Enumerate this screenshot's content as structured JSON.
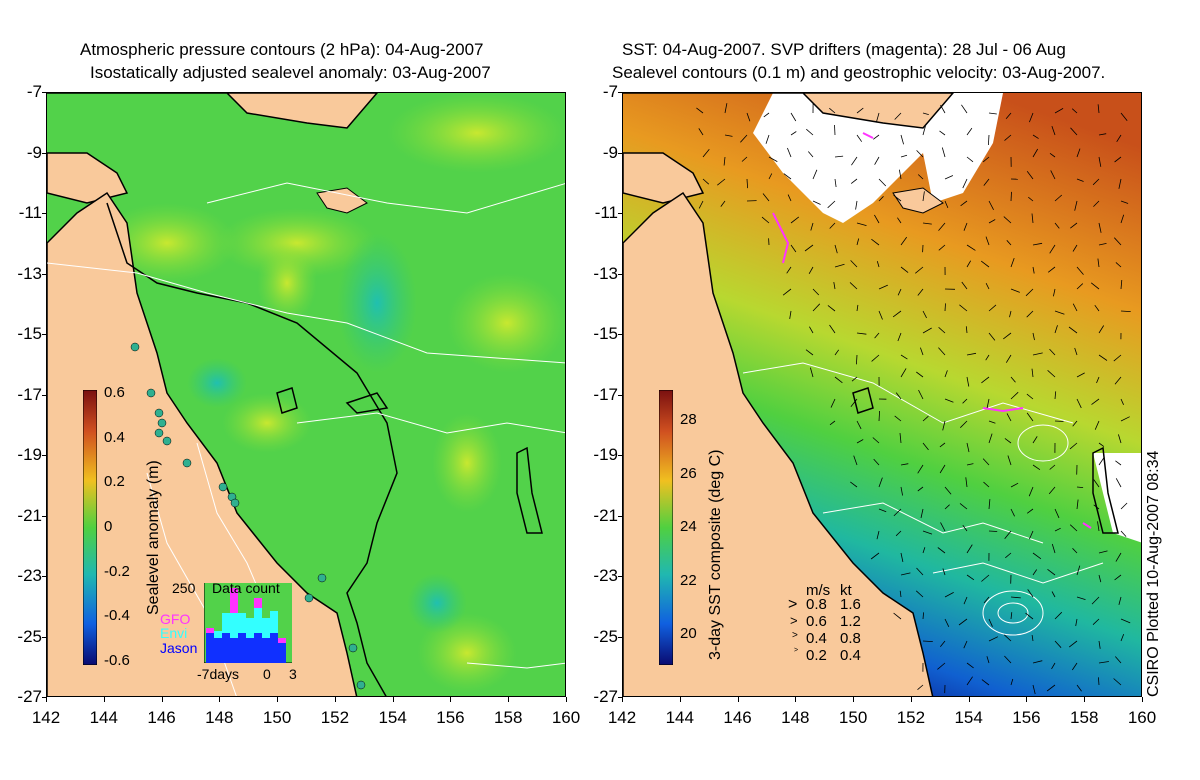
{
  "left_panel": {
    "title_line1": "Atmospheric pressure contours (2 hPa): 04-Aug-2007",
    "title_line2": "Isostatically adjusted sealevel anomaly: 03-Aug-2007",
    "colorbar_label": "Sealevel anomaly (m)",
    "colorbar_ticks": [
      "0.6",
      "0.4",
      "0.2",
      "0",
      "-0.2",
      "-0.4",
      "-0.6"
    ],
    "inset": {
      "title": "Data count",
      "ymax_label": "250",
      "legend": [
        {
          "label": "GFO",
          "color": "#ff33ff"
        },
        {
          "label": "Envi",
          "color": "#33ffff"
        },
        {
          "label": "Jason",
          "color": "#0000ff"
        }
      ],
      "x_left": "-7days",
      "x_mid": "0",
      "x_right": "3"
    }
  },
  "right_panel": {
    "title_line1": "SST: 04-Aug-2007. SVP drifters (magenta): 28 Jul - 06 Aug",
    "title_line2": "Sealevel contours (0.1 m) and geostrophic velocity: 03-Aug-2007.",
    "colorbar_label": "3-day SST composite (deg C)",
    "colorbar_ticks": [
      "28",
      "26",
      "24",
      "22",
      "20"
    ],
    "velocity_legend": {
      "header_ms": "m/s",
      "header_kt": "kt",
      "rows": [
        {
          "ms": "0.8",
          "kt": "1.6"
        },
        {
          "ms": "0.6",
          "kt": "1.2"
        },
        {
          "ms": "0.4",
          "kt": "0.8"
        },
        {
          "ms": "0.2",
          "kt": "0.4"
        }
      ]
    },
    "credit": "CSIRO Plotted 10-Aug-2007 08:34"
  },
  "axes": {
    "y_ticks": [
      "-7",
      "-9",
      "-11",
      "-13",
      "-15",
      "-17",
      "-19",
      "-21",
      "-23",
      "-25",
      "-27"
    ],
    "x_ticks": [
      "142",
      "144",
      "146",
      "148",
      "150",
      "152",
      "154",
      "156",
      "158",
      "160"
    ]
  },
  "colors": {
    "land": "#f9c99b",
    "ocean_green": "#4fd64a",
    "cloud": "#ffffff",
    "sst_warm": "#c8501a",
    "sst_cool": "#1030c0"
  }
}
